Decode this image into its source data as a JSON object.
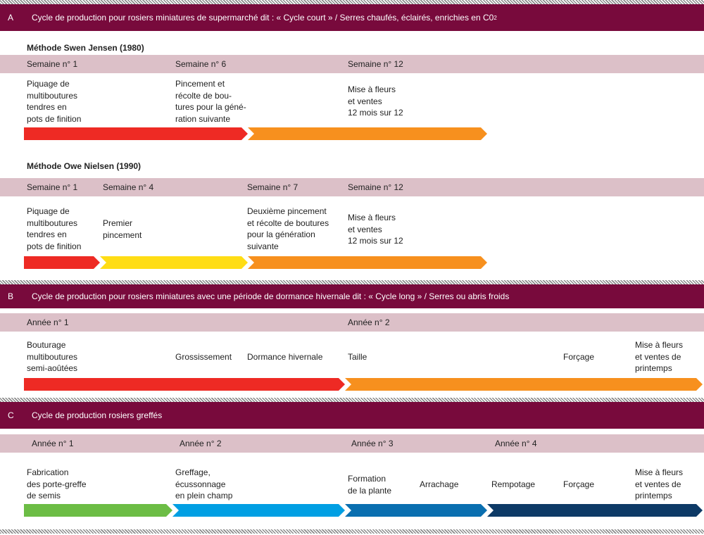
{
  "section_a": {
    "letter": "A",
    "title": "Cycle de production pour rosiers miniatures de supermarché dit : « Cycle court » / Serres chaufés, éclairés, enrichies en C0",
    "title_sub": "2",
    "method1": {
      "name": "Méthode Swen Jensen (1980)",
      "weeks": [
        "Semaine n° 1",
        "Semaine n° 6",
        "Semaine n° 12"
      ],
      "steps": [
        [
          "Piquage de",
          "multiboutures",
          "tendres en",
          "pots de finition"
        ],
        [
          "Pincement et",
          "récolte de bou-",
          "tures pour la géné-",
          "ration suivante"
        ],
        [
          "Mise à fleurs",
          "et ventes",
          "12 mois sur 12"
        ]
      ]
    },
    "method2": {
      "name": "Méthode Owe Nielsen (1990)",
      "weeks": [
        "Semaine n° 1",
        "Semaine n° 4",
        "Semaine n° 7",
        "Semaine n° 12"
      ],
      "steps": [
        [
          "Piquage de",
          "multiboutures",
          "tendres en",
          "pots de finition"
        ],
        [
          "Premier",
          "pincement"
        ],
        [
          "Deuxième pincement",
          "et récolte de boutures",
          "pour la génération",
          "suivante"
        ],
        [
          "Mise à fleurs",
          "et ventes",
          "12 mois sur 12"
        ]
      ]
    }
  },
  "section_b": {
    "letter": "B",
    "title": "Cycle de production pour rosiers miniatures avec une période de dormance hivernale dit : « Cycle long » / Serres ou abris froids",
    "years": [
      "Année n° 1",
      "Année n° 2"
    ],
    "steps": [
      [
        "Bouturage",
        "multiboutures",
        "semi-aoûtées"
      ],
      [
        "Grossissement"
      ],
      [
        "Dormance hivernale"
      ],
      [
        "Taille"
      ],
      [
        "Forçage"
      ],
      [
        "Mise à fleurs",
        "et ventes de",
        "printemps"
      ]
    ]
  },
  "section_c": {
    "letter": "C",
    "title": "Cycle de production rosiers greffés",
    "years": [
      "Année n° 1",
      "Année n° 2",
      "Année n° 3",
      "Année n° 4"
    ],
    "steps": [
      [
        "Fabrication",
        "des porte-greffe",
        "de semis"
      ],
      [
        "Greffage,",
        "écussonnage",
        "en plein champ"
      ],
      [
        "Formation",
        "de la plante"
      ],
      [
        "Arrachage"
      ],
      [
        "Rempotage"
      ],
      [
        "Forçage"
      ],
      [
        "Mise à fleurs",
        "et ventes de",
        "printemps"
      ]
    ]
  },
  "colors": {
    "header": "#780a3c",
    "band": "#dcc0c8",
    "red": "#ee2a24",
    "orange": "#f7901e",
    "yellow": "#ffdd15",
    "green": "#6cbd45",
    "light_blue": "#009fe3",
    "mid_blue": "#0a6fb0",
    "dark_blue": "#0d3a66"
  }
}
